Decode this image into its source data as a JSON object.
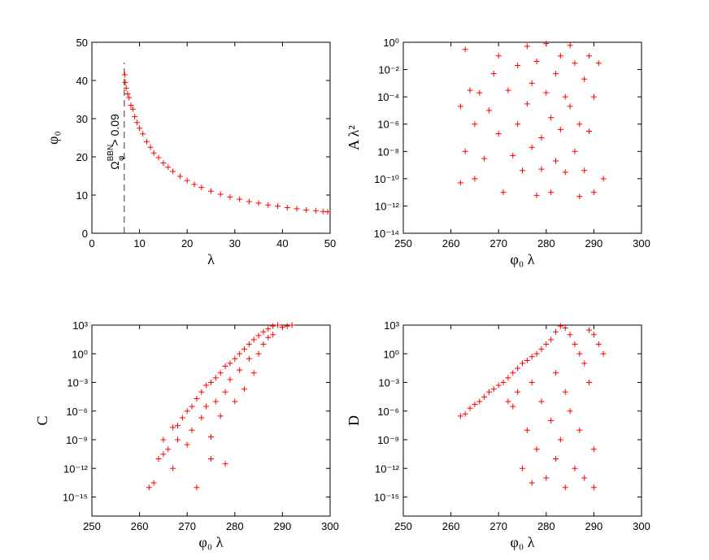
{
  "chart_data": [
    {
      "type": "scatter",
      "xlabel": "λ",
      "ylabel": "φ₀",
      "color": "#ff0000",
      "xlim": [
        0,
        50
      ],
      "ylim": [
        0,
        50
      ],
      "xticks": [
        0,
        10,
        20,
        30,
        40,
        50
      ],
      "yticks": [
        0,
        10,
        20,
        30,
        40,
        50
      ],
      "ylog": false,
      "cutoff_x": 6.8,
      "annotation": {
        "base": "Ω",
        "sub": "φ",
        "sup": "BBN",
        "rest": " > 0.09"
      },
      "x": [
        6.9,
        7.0,
        7.2,
        7.5,
        7.8,
        8.2,
        8.6,
        9,
        9.5,
        10,
        10.7,
        11.5,
        12.3,
        13,
        14,
        15,
        16,
        17,
        18.5,
        20,
        21.5,
        23,
        25,
        27,
        29,
        31,
        33,
        35,
        37,
        39,
        41,
        43,
        45,
        47,
        48.5,
        49.5
      ],
      "values": [
        41.5,
        39.5,
        38,
        36.5,
        35.5,
        33.5,
        32.5,
        30.5,
        29,
        27.5,
        26,
        24,
        22.5,
        21,
        19.8,
        18.4,
        17.3,
        16.2,
        14.9,
        13.8,
        12.8,
        12,
        11,
        10.2,
        9.5,
        8.9,
        8.3,
        7.9,
        7.4,
        7.1,
        6.7,
        6.4,
        6.1,
        5.9,
        5.7,
        5.6
      ]
    },
    {
      "type": "scatter",
      "xlabel": "φ₀ λ",
      "ylabel": "A λ²",
      "color": "#ff0000",
      "xlim": [
        250,
        300
      ],
      "ylim": [
        1e-14,
        1
      ],
      "xticks": [
        250,
        260,
        270,
        280,
        290,
        300
      ],
      "ylog": true,
      "yticks": [
        {
          "value": 1e-14,
          "label": "10⁻¹⁴"
        },
        {
          "value": 1e-12,
          "label": "10⁻¹²"
        },
        {
          "value": 1e-10,
          "label": "10⁻¹⁰"
        },
        {
          "value": 1e-08,
          "label": "10⁻⁸"
        },
        {
          "value": 1e-06,
          "label": "10⁻⁶"
        },
        {
          "value": 0.0001,
          "label": "10⁻⁴"
        },
        {
          "value": 0.01,
          "label": "10⁻²"
        },
        {
          "value": 1,
          "label": "10⁰"
        }
      ],
      "x": [
        263,
        262,
        264,
        263,
        265,
        262,
        266,
        267,
        265,
        268,
        269,
        270,
        271,
        270,
        272,
        273,
        274,
        274,
        275,
        276,
        276,
        277,
        277,
        278,
        278,
        279,
        279,
        280,
        280,
        281,
        281,
        282,
        282,
        283,
        283,
        284,
        284,
        285,
        285,
        286,
        286,
        287,
        287,
        288,
        288,
        289,
        289,
        290,
        290,
        291,
        292
      ],
      "values": [
        0.3,
        2e-05,
        0.0003,
        1e-08,
        1e-06,
        5e-11,
        0.0002,
        3e-09,
        1e-10,
        1e-05,
        0.005,
        2e-07,
        1e-11,
        0.1,
        0.0003,
        5e-09,
        0.02,
        1e-06,
        4e-10,
        0.5,
        3e-05,
        0.001,
        2e-08,
        6e-12,
        0.04,
        1e-07,
        5e-10,
        0.0002,
        0.8,
        3e-06,
        1e-11,
        0.005,
        2e-09,
        0.1,
        4e-07,
        0.0001,
        3e-10,
        0.6,
        2e-05,
        1e-08,
        0.03,
        5e-12,
        1e-06,
        0.002,
        4e-10,
        0.1,
        3e-07,
        0.0001,
        1e-11,
        0.03,
        1e-10
      ]
    },
    {
      "type": "scatter",
      "xlabel": "φ₀ λ",
      "ylabel": "C",
      "color": "#ff0000",
      "xlim": [
        250,
        300
      ],
      "ylim": [
        1e-17,
        1000
      ],
      "xticks": [
        250,
        260,
        270,
        280,
        290,
        300
      ],
      "ylog": true,
      "yticks": [
        {
          "value": 1e-15,
          "label": "10⁻¹⁵"
        },
        {
          "value": 1e-12,
          "label": "10⁻¹²"
        },
        {
          "value": 1e-09,
          "label": "10⁻⁹"
        },
        {
          "value": 1e-06,
          "label": "10⁻⁶"
        },
        {
          "value": 0.001,
          "label": "10⁻³"
        },
        {
          "value": 1,
          "label": "10⁰"
        },
        {
          "value": 1000,
          "label": "10³"
        }
      ],
      "x": [
        262,
        263,
        264,
        265,
        265,
        266,
        267,
        267,
        268,
        268,
        269,
        270,
        270,
        271,
        271,
        272,
        272,
        273,
        273,
        274,
        274,
        275,
        275,
        276,
        276,
        277,
        277,
        278,
        278,
        279,
        279,
        280,
        280,
        281,
        281,
        282,
        282,
        283,
        283,
        284,
        284,
        285,
        285,
        286,
        286,
        287,
        287,
        288,
        288,
        289,
        290,
        291,
        292,
        275,
        278
      ],
      "values": [
        1e-14,
        3e-14,
        1e-11,
        3e-11,
        1e-09,
        1e-10,
        2e-08,
        1e-12,
        3e-08,
        1e-09,
        2e-07,
        1e-06,
        3e-10,
        3e-06,
        1e-08,
        2e-05,
        1e-14,
        0.0001,
        2e-07,
        0.0005,
        3e-06,
        0.001,
        2e-09,
        0.003,
        1e-05,
        0.01,
        3e-07,
        0.05,
        0.0001,
        0.1,
        0.002,
        0.3,
        1e-05,
        1,
        0.02,
        3,
        0.0002,
        10,
        0.3,
        30,
        0.01,
        80,
        1,
        200,
        10,
        400,
        50,
        800,
        100,
        1000,
        600,
        800,
        1000,
        1e-11,
        3e-12
      ]
    },
    {
      "type": "scatter",
      "xlabel": "φ₀ λ",
      "ylabel": "D",
      "color": "#ff0000",
      "xlim": [
        250,
        300
      ],
      "ylim": [
        1e-17,
        1000
      ],
      "xticks": [
        250,
        260,
        270,
        280,
        290,
        300
      ],
      "ylog": true,
      "yticks": [
        {
          "value": 1e-15,
          "label": "10⁻¹⁵"
        },
        {
          "value": 1e-12,
          "label": "10⁻¹²"
        },
        {
          "value": 1e-09,
          "label": "10⁻⁹"
        },
        {
          "value": 1e-06,
          "label": "10⁻⁶"
        },
        {
          "value": 0.001,
          "label": "10⁻³"
        },
        {
          "value": 1,
          "label": "10⁰"
        },
        {
          "value": 1000,
          "label": "10³"
        }
      ],
      "x": [
        262,
        263,
        264,
        265,
        266,
        267,
        268,
        269,
        270,
        271,
        272,
        272,
        273,
        273,
        274,
        274,
        275,
        275,
        276,
        276,
        277,
        277,
        277,
        278,
        278,
        279,
        279,
        280,
        280,
        281,
        281,
        282,
        282,
        282,
        283,
        283,
        284,
        284,
        284,
        285,
        285,
        286,
        286,
        287,
        287,
        288,
        288,
        289,
        289,
        290,
        290,
        291,
        292,
        290
      ],
      "values": [
        3e-07,
        5e-07,
        2e-06,
        5e-06,
        1e-05,
        3e-05,
        0.0001,
        0.0002,
        0.0005,
        0.001,
        0.003,
        1e-05,
        0.01,
        3e-06,
        0.03,
        0.0001,
        0.1,
        1e-12,
        0.2,
        1e-08,
        0.5,
        0.001,
        3e-14,
        1,
        1e-10,
        3,
        1e-05,
        10,
        1e-13,
        30,
        1e-07,
        200,
        0.01,
        1e-11,
        800,
        1e-09,
        500,
        0.0001,
        1e-14,
        100,
        1e-06,
        10,
        1e-12,
        1,
        1e-08,
        0.1,
        1e-13,
        300,
        0.001,
        100,
        1e-10,
        10,
        1,
        1e-14
      ]
    }
  ]
}
